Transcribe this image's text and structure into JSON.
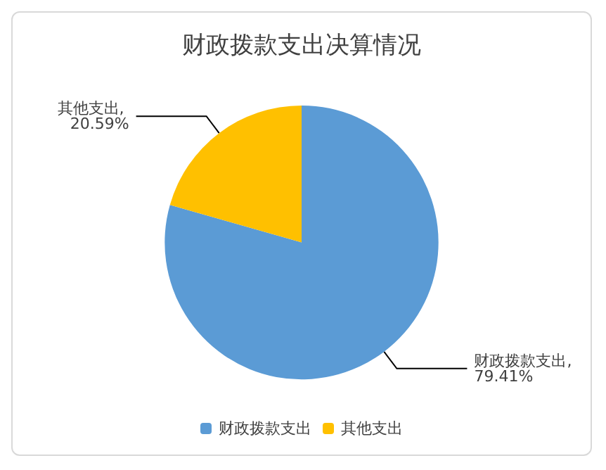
{
  "chart_data": {
    "type": "pie",
    "title": "财政拨款支出决算情况",
    "categories": [
      "财政拨款支出",
      "其他支出"
    ],
    "values": [
      79.41,
      20.59
    ],
    "colors": [
      "#5b9bd5",
      "#ffc000"
    ],
    "value_labels": [
      "财政拨款支出, 79.41%",
      "其他支出, 20.59%"
    ],
    "legend": "bottom"
  }
}
